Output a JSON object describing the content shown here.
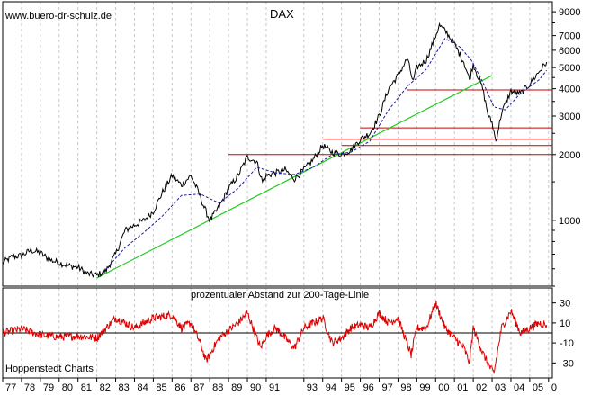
{
  "chart_data": [
    {
      "type": "line",
      "title": "DAX",
      "watermark": "www.buero-dr-schulz.de",
      "yscale": "log",
      "ylim": [
        500,
        10000
      ],
      "y_ticks": [
        1000,
        2000,
        3000,
        4000,
        5000,
        6000,
        7000,
        9000
      ],
      "x_ticks": [
        "77",
        "78",
        "79",
        "80",
        "81",
        "82",
        "83",
        "84",
        "85",
        "86",
        "87",
        "88",
        "89",
        "90",
        "91",
        "93",
        "94",
        "95",
        "96",
        "97",
        "98",
        "99",
        "00",
        "01",
        "02",
        "03",
        "04",
        "05",
        "0"
      ],
      "series": [
        {
          "name": "DAX",
          "color": "#000000",
          "points": [
            [
              1977.0,
              640
            ],
            [
              1977.5,
              680
            ],
            [
              1978.0,
              690
            ],
            [
              1978.5,
              730
            ],
            [
              1979.0,
              710
            ],
            [
              1979.5,
              660
            ],
            [
              1980.0,
              640
            ],
            [
              1980.5,
              620
            ],
            [
              1981.0,
              610
            ],
            [
              1981.5,
              570
            ],
            [
              1982.0,
              560
            ],
            [
              1982.5,
              590
            ],
            [
              1983.0,
              700
            ],
            [
              1983.5,
              900
            ],
            [
              1984.0,
              950
            ],
            [
              1984.5,
              1000
            ],
            [
              1985.0,
              1100
            ],
            [
              1985.5,
              1350
            ],
            [
              1986.0,
              1600
            ],
            [
              1986.5,
              1450
            ],
            [
              1987.0,
              1600
            ],
            [
              1987.4,
              1350
            ],
            [
              1987.7,
              1150
            ],
            [
              1988.0,
              1000
            ],
            [
              1988.5,
              1150
            ],
            [
              1989.0,
              1400
            ],
            [
              1989.5,
              1600
            ],
            [
              1990.0,
              1950
            ],
            [
              1990.5,
              1850
            ],
            [
              1990.8,
              1500
            ],
            [
              1991.0,
              1600
            ],
            [
              1991.5,
              1650
            ],
            [
              1992.0,
              1700
            ],
            [
              1992.5,
              1550
            ],
            [
              1993.0,
              1700
            ],
            [
              1993.5,
              1900
            ],
            [
              1994.0,
              2200
            ],
            [
              1994.5,
              2050
            ],
            [
              1995.0,
              2000
            ],
            [
              1995.5,
              2100
            ],
            [
              1996.0,
              2350
            ],
            [
              1996.5,
              2500
            ],
            [
              1997.0,
              3000
            ],
            [
              1997.5,
              4000
            ],
            [
              1998.0,
              4600
            ],
            [
              1998.5,
              5500
            ],
            [
              1998.8,
              4300
            ],
            [
              1999.0,
              5000
            ],
            [
              1999.5,
              5400
            ],
            [
              2000.0,
              7000
            ],
            [
              2000.2,
              7800
            ],
            [
              2000.6,
              7200
            ],
            [
              2001.0,
              6400
            ],
            [
              2001.5,
              5300
            ],
            [
              2001.8,
              4400
            ],
            [
              2002.0,
              5200
            ],
            [
              2002.5,
              4000
            ],
            [
              2002.8,
              3000
            ],
            [
              2003.0,
              2800
            ],
            [
              2003.2,
              2300
            ],
            [
              2003.5,
              3100
            ],
            [
              2004.0,
              3900
            ],
            [
              2004.5,
              3800
            ],
            [
              2005.0,
              4200
            ],
            [
              2005.5,
              4800
            ],
            [
              2005.9,
              5300
            ]
          ]
        },
        {
          "name": "200-Tage-Linie",
          "color": "#1a1aa8",
          "dashed": true,
          "points": [
            [
              1982.5,
              600
            ],
            [
              1983.5,
              750
            ],
            [
              1984.5,
              880
            ],
            [
              1985.5,
              1050
            ],
            [
              1986.5,
              1300
            ],
            [
              1987.5,
              1320
            ],
            [
              1988.5,
              1200
            ],
            [
              1989.5,
              1400
            ],
            [
              1990.5,
              1750
            ],
            [
              1991.5,
              1650
            ],
            [
              1992.5,
              1620
            ],
            [
              1993.5,
              1750
            ],
            [
              1994.5,
              2000
            ],
            [
              1995.5,
              2050
            ],
            [
              1996.5,
              2300
            ],
            [
              1997.5,
              3200
            ],
            [
              1998.5,
              4100
            ],
            [
              1999.5,
              4900
            ],
            [
              2000.5,
              6800
            ],
            [
              2001.3,
              6200
            ],
            [
              2001.9,
              5400
            ],
            [
              2002.5,
              4300
            ],
            [
              2003.1,
              3300
            ],
            [
              2003.7,
              3200
            ],
            [
              2004.5,
              3800
            ],
            [
              2005.5,
              4400
            ],
            [
              2005.9,
              4850
            ]
          ]
        },
        {
          "name": "Trendlinie",
          "color": "#22cc22",
          "points": [
            [
              1982.0,
              545
            ],
            [
              2003.0,
              4600
            ]
          ]
        }
      ],
      "hlines": [
        {
          "value": 3950,
          "from": 1998.5,
          "to": 2006.2
        },
        {
          "value": 2650,
          "from": 1996.0,
          "to": 2006.2
        },
        {
          "value": 2350,
          "from": 1994.0,
          "to": 2006.2
        },
        {
          "value": 2200,
          "from": 1995.0,
          "to": 2006.2
        },
        {
          "value": 2000,
          "from": 1989.0,
          "to": 2006.2
        }
      ]
    },
    {
      "type": "line",
      "title": "prozentualer Abstand zur 200-Tage-Linie",
      "source": "Hoppenstedt Charts",
      "ylim": [
        -45,
        45
      ],
      "y_ticks": [
        30,
        10,
        -10,
        -30
      ],
      "series": [
        {
          "name": "Abstand",
          "color": "#dd0000",
          "points": [
            [
              1977.0,
              0
            ],
            [
              1978.0,
              4
            ],
            [
              1979.0,
              -2
            ],
            [
              1980.0,
              -4
            ],
            [
              1981.0,
              -3
            ],
            [
              1982.0,
              -5
            ],
            [
              1983.0,
              15
            ],
            [
              1984.0,
              5
            ],
            [
              1985.0,
              15
            ],
            [
              1986.0,
              18
            ],
            [
              1986.5,
              5
            ],
            [
              1987.0,
              10
            ],
            [
              1987.5,
              -10
            ],
            [
              1987.8,
              -28
            ],
            [
              1988.5,
              -5
            ],
            [
              1989.5,
              10
            ],
            [
              1990.0,
              20
            ],
            [
              1990.7,
              -15
            ],
            [
              1991.0,
              -3
            ],
            [
              1991.5,
              5
            ],
            [
              1992.0,
              -5
            ],
            [
              1992.5,
              -15
            ],
            [
              1993.0,
              5
            ],
            [
              1993.5,
              10
            ],
            [
              1994.0,
              15
            ],
            [
              1994.5,
              -10
            ],
            [
              1995.0,
              -5
            ],
            [
              1995.5,
              5
            ],
            [
              1996.0,
              8
            ],
            [
              1996.5,
              5
            ],
            [
              1997.0,
              20
            ],
            [
              1997.5,
              10
            ],
            [
              1998.0,
              15
            ],
            [
              1998.7,
              -22
            ],
            [
              1999.0,
              5
            ],
            [
              1999.5,
              5
            ],
            [
              2000.0,
              30
            ],
            [
              2000.5,
              5
            ],
            [
              2001.0,
              -5
            ],
            [
              2001.5,
              -15
            ],
            [
              2001.8,
              -30
            ],
            [
              2002.0,
              5
            ],
            [
              2002.5,
              -20
            ],
            [
              2002.9,
              -35
            ],
            [
              2003.1,
              -40
            ],
            [
              2003.5,
              5
            ],
            [
              2004.0,
              22
            ],
            [
              2004.5,
              0
            ],
            [
              2005.0,
              5
            ],
            [
              2005.5,
              10
            ],
            [
              2005.9,
              8
            ]
          ]
        }
      ]
    }
  ]
}
